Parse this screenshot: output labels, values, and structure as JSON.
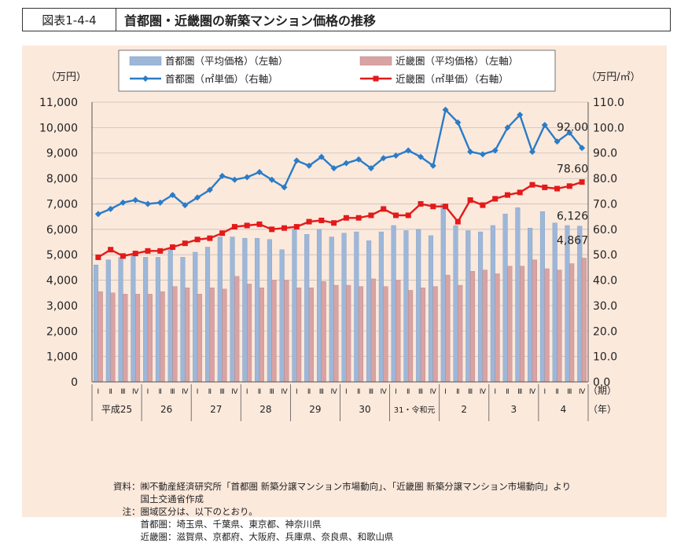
{
  "header": {
    "figure_number": "図表1-4-4",
    "title": "首都圏・近畿圏の新築マンション価格の推移"
  },
  "colors": {
    "bar_shuto": "#9db7d9",
    "bar_kinki": "#d9a3a3",
    "line_shuto": "#2a7cc7",
    "line_kinki": "#e31a1a",
    "background": "#fbe9dc"
  },
  "chart_data": {
    "type": "bar+line",
    "left_unit": "（万円）",
    "right_unit": "（万円/㎡）",
    "period_label": "（期）",
    "year_label": "（年）",
    "left_ylim": [
      0,
      11000
    ],
    "right_ylim": [
      0,
      110
    ],
    "left_ticks": [
      "0",
      "1,000",
      "2,000",
      "3,000",
      "4,000",
      "5,000",
      "6,000",
      "7,000",
      "8,000",
      "9,000",
      "10,000",
      "11,000"
    ],
    "right_ticks": [
      "0.0",
      "10.0",
      "20.0",
      "30.0",
      "40.0",
      "50.0",
      "60.0",
      "70.0",
      "80.0",
      "90.0",
      "100.0",
      "110.0"
    ],
    "quarter_labels": [
      "Ⅰ",
      "Ⅱ",
      "Ⅲ",
      "Ⅳ"
    ],
    "years": [
      "平成25",
      "26",
      "27",
      "28",
      "29",
      "30",
      "31・令和元",
      "2",
      "3",
      "4"
    ],
    "legend": {
      "bar_shuto": "首都圏（平均価格）（左軸）",
      "bar_kinki": "近畿圏（平均価格）（左軸）",
      "line_shuto": "首都圏（㎡単価）（右軸）",
      "line_kinki": "近畿圏（㎡単価）（右軸）"
    },
    "series": [
      {
        "name": "首都圏（平均価格）（左軸）",
        "kind": "bar",
        "axis": "left",
        "values": [
          4600,
          4800,
          4900,
          5000,
          4900,
          4900,
          5200,
          4900,
          5100,
          5300,
          5700,
          5700,
          5650,
          5650,
          5600,
          5200,
          6000,
          5800,
          6000,
          5700,
          5850,
          5900,
          5550,
          5900,
          6150,
          5950,
          6000,
          5750,
          7000,
          6150,
          5950,
          5900,
          6150,
          6600,
          6850,
          6050,
          6700,
          6250,
          6150,
          6126
        ]
      },
      {
        "name": "近畿圏（平均価格）（左軸）",
        "kind": "bar",
        "axis": "left",
        "values": [
          3550,
          3500,
          3450,
          3450,
          3450,
          3550,
          3750,
          3700,
          3450,
          3700,
          3650,
          4150,
          3850,
          3700,
          4000,
          4000,
          3700,
          3700,
          3950,
          3800,
          3800,
          3750,
          4050,
          3750,
          4000,
          3600,
          3700,
          3750,
          4200,
          3800,
          4350,
          4400,
          4250,
          4550,
          4550,
          4800,
          4450,
          4400,
          4650,
          4867
        ]
      },
      {
        "name": "首都圏（㎡単価）（右軸）",
        "kind": "line",
        "axis": "right",
        "values": [
          66.0,
          68.0,
          70.5,
          71.5,
          70.0,
          70.5,
          73.5,
          69.5,
          72.5,
          75.5,
          81.0,
          79.5,
          80.5,
          82.5,
          79.5,
          76.5,
          87.0,
          85.0,
          88.5,
          84.0,
          86.0,
          87.5,
          84.0,
          88.0,
          89.0,
          91.0,
          88.5,
          85.0,
          107.0,
          102.0,
          90.5,
          89.5,
          91.0,
          100.0,
          105.0,
          90.5,
          101.0,
          94.5,
          98.0,
          92.0
        ]
      },
      {
        "name": "近畿圏（㎡単価）（右軸）",
        "kind": "line",
        "axis": "right",
        "values": [
          49.0,
          52.0,
          49.5,
          50.5,
          51.5,
          51.5,
          53.0,
          54.5,
          56.0,
          56.5,
          58.5,
          61.0,
          61.5,
          62.0,
          60.0,
          60.5,
          61.0,
          63.0,
          63.5,
          62.5,
          64.5,
          64.5,
          65.5,
          68.0,
          65.5,
          65.5,
          70.0,
          69.0,
          69.0,
          63.0,
          71.5,
          69.5,
          72.0,
          73.5,
          74.5,
          77.5,
          76.5,
          76.0,
          77.0,
          78.6
        ]
      }
    ],
    "annotations": {
      "line_shuto_last": "92.00",
      "line_kinki_last": "78.60",
      "bar_shuto_last": "6,126",
      "bar_kinki_last": "4,867"
    },
    "grid": "horizontal"
  },
  "notes": [
    "資料：㈱不動産経済研究所「首都圏 新築分譲マンション市場動向」、「近畿圏 新築分譲マンション市場動向」より",
    "　　　国土交通省作成",
    "　注：圏域区分は、以下のとおり。",
    "　　　首都圏：埼玉県、千葉県、東京都、神奈川県",
    "　　　近畿圏：滋賀県、京都府、大阪府、兵庫県、奈良県、和歌山県"
  ]
}
